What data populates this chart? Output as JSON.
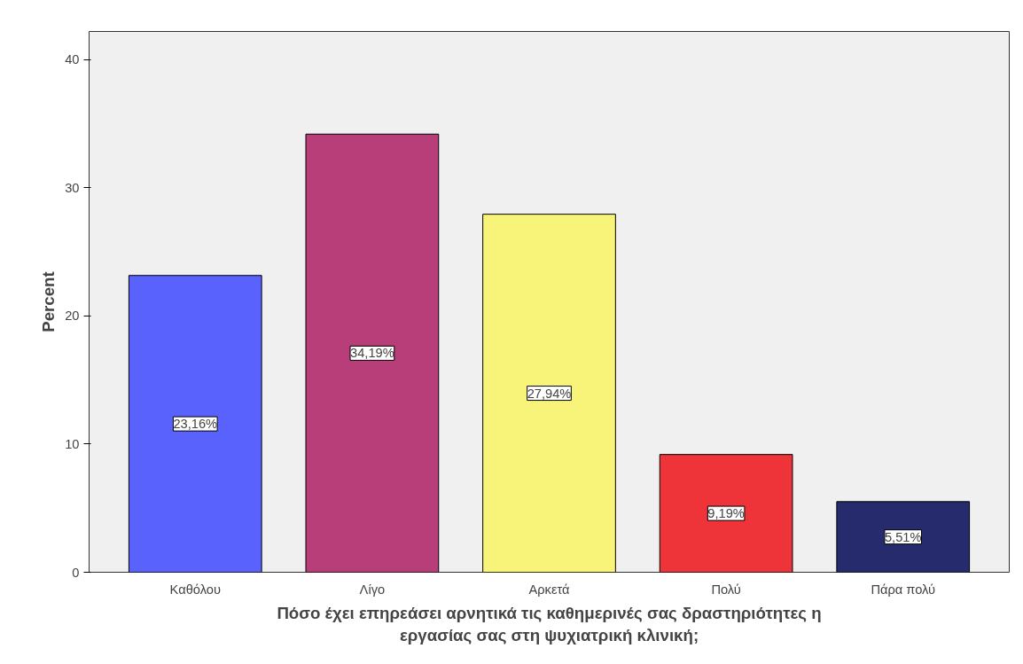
{
  "chart_data": {
    "type": "bar",
    "xlabel": "Πόσο έχει επηρεάσει αρνητικά τις καθημερινές σας δραστηριότητες η εργασίας σας στη ψυχιατρική κλινική;",
    "ylabel": "Percent",
    "categories": [
      "Καθόλου",
      "Λίγο",
      "Αρκετά",
      "Πολύ",
      "Πάρα πολύ"
    ],
    "values": [
      23.16,
      34.19,
      27.94,
      9.19,
      5.51
    ],
    "colors": [
      "#5a62fe",
      "#b83e7a",
      "#f8f47a",
      "#ee3339",
      "#262b6e"
    ],
    "value_labels": [
      "23,16%",
      "34,19%",
      "27,94%",
      "9,19%",
      "5,51%"
    ],
    "ylim": [
      0,
      42.2
    ],
    "yticks": [
      0,
      10,
      20,
      30,
      40
    ],
    "grid": false
  }
}
